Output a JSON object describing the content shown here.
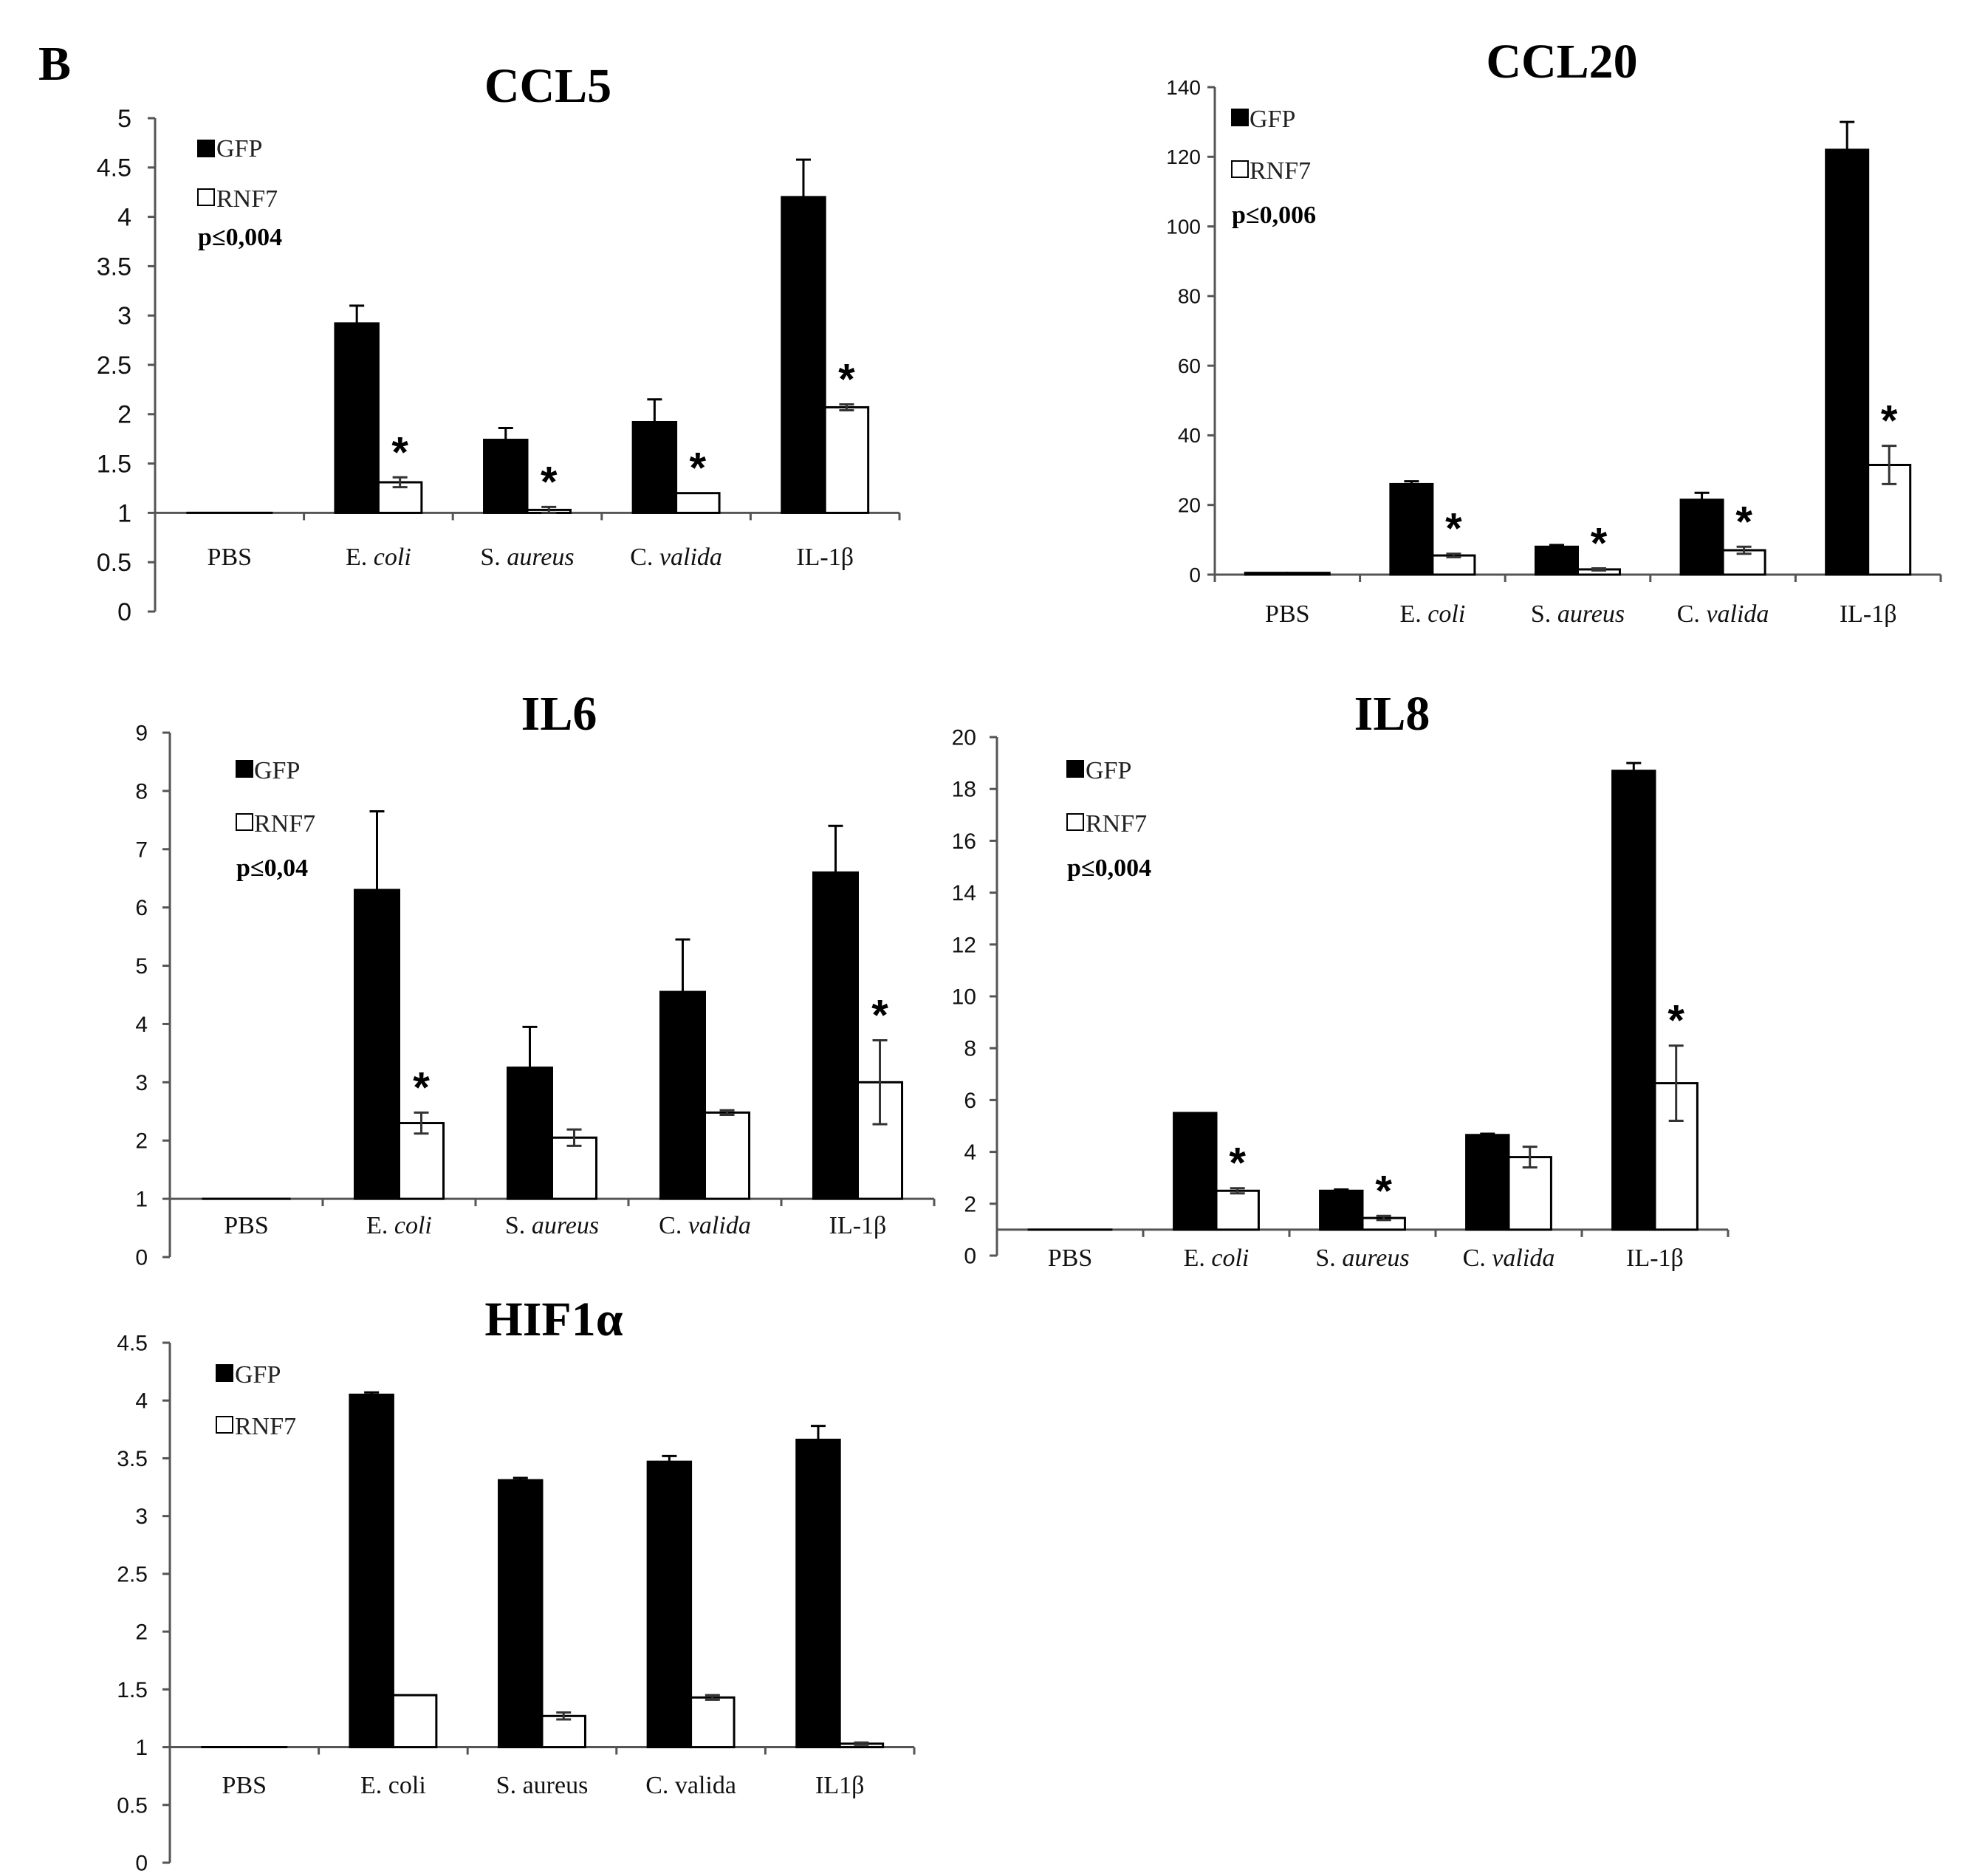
{
  "panel_label": "B",
  "legend_names": [
    "GFP",
    "RNF7"
  ],
  "colors": {
    "GFP": "#000000",
    "RNF7": "#ffffff",
    "axis": "#555555"
  },
  "chart_data": [
    {
      "id": "ccl5",
      "type": "bar",
      "title": "CCL5",
      "categories": [
        {
          "pre": "",
          "it": "",
          "label": "PBS"
        },
        {
          "pre": "E. ",
          "it": "coli",
          "label": "E. coli"
        },
        {
          "pre": "S. ",
          "it": "aureus",
          "label": "S. aureus"
        },
        {
          "pre": "C. ",
          "it": "valida",
          "label": "C. valida"
        },
        {
          "pre": "",
          "it": "",
          "label": "IL-1β"
        }
      ],
      "series": [
        {
          "name": "GFP",
          "values": [
            1,
            2.92,
            1.74,
            1.92,
            4.2
          ],
          "errors": [
            0,
            0.18,
            0.12,
            0.23,
            0.38
          ]
        },
        {
          "name": "RNF7",
          "values": [
            1,
            1.31,
            1.03,
            1.2,
            2.07
          ],
          "errors": [
            0,
            0.05,
            0.03,
            0,
            0.03
          ]
        }
      ],
      "significant": [
        false,
        true,
        true,
        true,
        true
      ],
      "yticks": [
        "0",
        "0.5",
        "1",
        "1.5",
        "2",
        "2.5",
        "3",
        "3.5",
        "4",
        "4.5",
        "5"
      ],
      "ylim": [
        0,
        5
      ],
      "baseline": 1,
      "pvalue": "p≤0,004"
    },
    {
      "id": "ccl20",
      "type": "bar",
      "title": "CCL20",
      "categories": [
        {
          "pre": "",
          "it": "",
          "label": "PBS"
        },
        {
          "pre": "E. ",
          "it": "coli",
          "label": "E. coli"
        },
        {
          "pre": "S. ",
          "it": "aureus",
          "label": "S. aureus"
        },
        {
          "pre": "C. ",
          "it": "valida",
          "label": "C. valida"
        },
        {
          "pre": "",
          "it": "",
          "label": "IL-1β"
        }
      ],
      "series": [
        {
          "name": "GFP",
          "values": [
            0.5,
            26,
            8,
            21.5,
            122
          ],
          "errors": [
            0,
            0.8,
            0.5,
            2,
            8
          ]
        },
        {
          "name": "RNF7",
          "values": [
            0.5,
            5.5,
            1.5,
            7,
            31.5
          ],
          "errors": [
            0,
            0.5,
            0.3,
            1,
            5.5
          ]
        }
      ],
      "significant": [
        false,
        true,
        true,
        true,
        true
      ],
      "yticks": [
        "0",
        "20",
        "40",
        "60",
        "80",
        "100",
        "120",
        "140"
      ],
      "ylim": [
        0,
        140
      ],
      "baseline": 0,
      "pvalue": "p≤0,006"
    },
    {
      "id": "il6",
      "type": "bar",
      "title": "IL6",
      "categories": [
        {
          "pre": "",
          "it": "",
          "label": "PBS"
        },
        {
          "pre": "E. ",
          "it": "coli",
          "label": "E. coli"
        },
        {
          "pre": "S. ",
          "it": "aureus",
          "label": "S. aureus"
        },
        {
          "pre": "C. ",
          "it": "valida",
          "label": "C. valida"
        },
        {
          "pre": "",
          "it": "",
          "label": "IL-1β"
        }
      ],
      "series": [
        {
          "name": "GFP",
          "values": [
            1,
            6.3,
            3.25,
            4.55,
            6.6
          ],
          "errors": [
            0,
            1.35,
            0.7,
            0.9,
            0.8
          ]
        },
        {
          "name": "RNF7",
          "values": [
            1,
            2.3,
            2.05,
            2.48,
            3.0
          ],
          "errors": [
            0,
            0.18,
            0.14,
            0.04,
            0.72
          ]
        }
      ],
      "significant": [
        false,
        true,
        false,
        false,
        true
      ],
      "yticks": [
        "0",
        "1",
        "2",
        "3",
        "4",
        "5",
        "6",
        "7",
        "8",
        "9"
      ],
      "ylim": [
        0,
        9
      ],
      "baseline": 1,
      "pvalue": "p≤0,04"
    },
    {
      "id": "il8",
      "type": "bar",
      "title": "IL8",
      "categories": [
        {
          "pre": "",
          "it": "",
          "label": "PBS"
        },
        {
          "pre": "E. ",
          "it": "coli",
          "label": "E. coli"
        },
        {
          "pre": "S. ",
          "it": "aureus",
          "label": "S. aureus"
        },
        {
          "pre": "C. ",
          "it": "valida",
          "label": "C. valida"
        },
        {
          "pre": "",
          "it": "",
          "label": "IL-1β"
        }
      ],
      "series": [
        {
          "name": "GFP",
          "values": [
            1,
            5.5,
            2.5,
            4.65,
            18.7
          ],
          "errors": [
            0,
            0,
            0.05,
            0.05,
            0.3
          ]
        },
        {
          "name": "RNF7",
          "values": [
            1,
            2.5,
            1.45,
            3.8,
            6.65
          ],
          "errors": [
            0,
            0.1,
            0.08,
            0.4,
            1.45
          ]
        }
      ],
      "significant": [
        false,
        true,
        true,
        false,
        true
      ],
      "yticks": [
        "0",
        "2",
        "4",
        "6",
        "8",
        "10",
        "12",
        "14",
        "16",
        "18",
        "20"
      ],
      "ylim": [
        0,
        20
      ],
      "baseline": 1,
      "pvalue": "p≤0,004"
    },
    {
      "id": "hif1a",
      "type": "bar",
      "title": "HIF1α",
      "categories": [
        {
          "pre": "",
          "it": "",
          "label": "PBS"
        },
        {
          "pre": "",
          "it": "",
          "label": "E. coli"
        },
        {
          "pre": "",
          "it": "",
          "label": "S. aureus"
        },
        {
          "pre": "",
          "it": "",
          "label": "C. valida"
        },
        {
          "pre": "",
          "it": "",
          "label": "IL1β"
        }
      ],
      "series": [
        {
          "name": "GFP",
          "values": [
            1,
            4.05,
            3.31,
            3.47,
            3.66
          ],
          "errors": [
            0,
            0.02,
            0.02,
            0.05,
            0.12
          ]
        },
        {
          "name": "RNF7",
          "values": [
            1,
            1.45,
            1.27,
            1.43,
            1.03
          ],
          "errors": [
            0,
            0,
            0.03,
            0.02,
            0.01
          ]
        }
      ],
      "significant": [
        false,
        false,
        false,
        false,
        false
      ],
      "yticks": [
        "0",
        "0.5",
        "1",
        "1.5",
        "2",
        "2.5",
        "3",
        "3.5",
        "4",
        "4.5"
      ],
      "ylim": [
        0,
        4.5
      ],
      "baseline": 1,
      "pvalue": ""
    }
  ]
}
